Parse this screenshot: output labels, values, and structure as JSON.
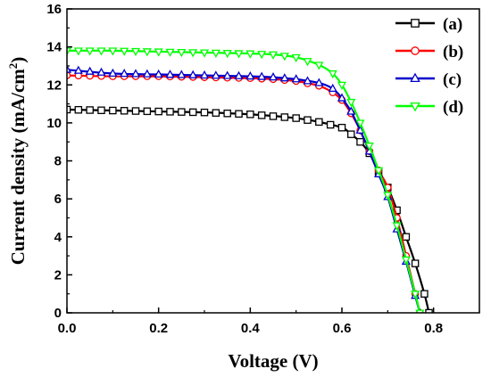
{
  "chart_data": {
    "type": "line",
    "xlabel": "Voltage (V)",
    "ylabel_main": "Current density (mA/cm",
    "ylabel_sup": "2",
    "ylabel_close": ")",
    "xlim": [
      0.0,
      0.9
    ],
    "ylim": [
      0,
      16
    ],
    "xticks": [
      0.0,
      0.2,
      0.4,
      0.6,
      0.8
    ],
    "xtick_labels": [
      "0.0",
      "0.2",
      "0.4",
      "0.6",
      "0.8"
    ],
    "yticks": [
      0,
      2,
      4,
      6,
      8,
      10,
      12,
      14,
      16
    ],
    "ytick_labels": [
      "0",
      "2",
      "4",
      "6",
      "8",
      "10",
      "12",
      "14",
      "16"
    ],
    "grid": false,
    "legend_position": "top-right",
    "series": [
      {
        "name": "(a)",
        "color": "#000000",
        "marker": "square",
        "x": [
          0.0,
          0.1,
          0.2,
          0.3,
          0.4,
          0.5,
          0.55,
          0.6,
          0.62,
          0.64,
          0.66,
          0.68,
          0.7,
          0.72,
          0.74,
          0.76,
          0.78,
          0.79
        ],
        "y": [
          10.7,
          10.65,
          10.6,
          10.55,
          10.45,
          10.25,
          10.05,
          9.75,
          9.4,
          9.0,
          8.4,
          7.4,
          6.6,
          5.4,
          4.0,
          2.6,
          1.0,
          0.0
        ]
      },
      {
        "name": "(b)",
        "color": "#ff0000",
        "marker": "circle",
        "x": [
          0.0,
          0.1,
          0.2,
          0.3,
          0.4,
          0.45,
          0.5,
          0.55,
          0.58,
          0.6,
          0.62,
          0.64,
          0.66,
          0.68,
          0.7,
          0.72,
          0.74,
          0.76,
          0.77
        ],
        "y": [
          12.5,
          12.45,
          12.45,
          12.4,
          12.35,
          12.3,
          12.2,
          11.95,
          11.6,
          11.2,
          10.5,
          9.6,
          8.5,
          7.5,
          6.6,
          5.0,
          3.0,
          1.0,
          0.0
        ]
      },
      {
        "name": "(c)",
        "color": "#0000cc",
        "marker": "triangle-up",
        "x": [
          0.0,
          0.1,
          0.2,
          0.3,
          0.4,
          0.45,
          0.5,
          0.55,
          0.58,
          0.6,
          0.62,
          0.64,
          0.66,
          0.68,
          0.7,
          0.72,
          0.74,
          0.76,
          0.77
        ],
        "y": [
          12.8,
          12.6,
          12.55,
          12.5,
          12.45,
          12.4,
          12.3,
          12.1,
          11.8,
          11.3,
          10.6,
          9.6,
          8.5,
          7.3,
          6.1,
          4.4,
          2.7,
          0.9,
          0.0
        ]
      },
      {
        "name": "(d)",
        "color": "#00ff00",
        "marker": "triangle-down",
        "x": [
          0.0,
          0.1,
          0.2,
          0.3,
          0.4,
          0.45,
          0.5,
          0.55,
          0.58,
          0.6,
          0.62,
          0.64,
          0.66,
          0.68,
          0.7,
          0.72,
          0.74,
          0.76,
          0.77
        ],
        "y": [
          13.8,
          13.8,
          13.75,
          13.7,
          13.65,
          13.6,
          13.45,
          13.05,
          12.6,
          12.0,
          11.1,
          10.0,
          8.8,
          7.5,
          6.2,
          4.6,
          2.8,
          1.0,
          0.0
        ]
      }
    ]
  }
}
